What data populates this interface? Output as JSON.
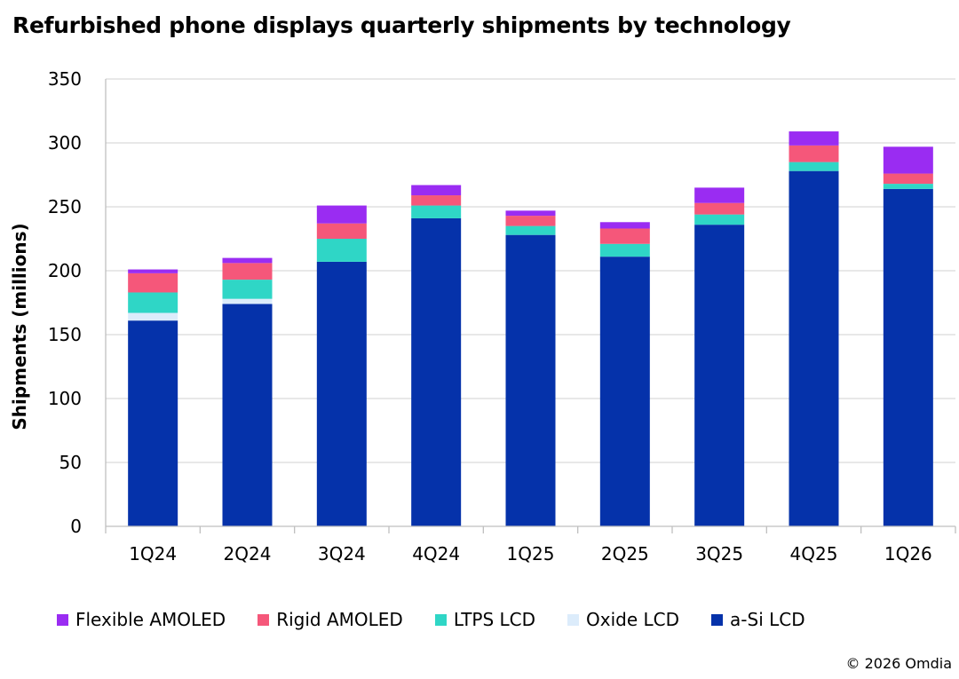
{
  "chart_data": {
    "type": "bar",
    "stacked": true,
    "title": "Refurbished phone displays quarterly shipments by technology",
    "xlabel": "",
    "ylabel": "Shipments (millions)",
    "ylim": [
      0,
      350
    ],
    "yticks": [
      0,
      50,
      100,
      150,
      200,
      250,
      300,
      350
    ],
    "grid": true,
    "legend_position": "bottom",
    "categories": [
      "1Q24",
      "2Q24",
      "3Q24",
      "4Q24",
      "1Q25",
      "2Q25",
      "3Q25",
      "4Q25",
      "1Q26"
    ],
    "series": [
      {
        "name": "a-Si LCD",
        "color": "#0532aa",
        "values": [
          161,
          174,
          207,
          241,
          228,
          211,
          236,
          278,
          264
        ]
      },
      {
        "name": "Oxide LCD",
        "color": "#dcecfb",
        "values": [
          6,
          4,
          0,
          0,
          0,
          0,
          0,
          0,
          0
        ]
      },
      {
        "name": "LTPS LCD",
        "color": "#2fd6c6",
        "values": [
          16,
          15,
          18,
          10,
          7,
          10,
          8,
          7,
          4
        ]
      },
      {
        "name": "Rigid AMOLED",
        "color": "#f5577a",
        "values": [
          15,
          13,
          12,
          8,
          8,
          12,
          9,
          13,
          8
        ]
      },
      {
        "name": "Flexible AMOLED",
        "color": "#9a2cf2",
        "values": [
          3,
          4,
          14,
          8,
          4,
          5,
          12,
          11,
          21
        ]
      }
    ],
    "legend_order": [
      "Flexible AMOLED",
      "Rigid AMOLED",
      "LTPS LCD",
      "Oxide LCD",
      "a-Si LCD"
    ]
  },
  "footer": {
    "copyright": "© 2026 Omdia"
  }
}
